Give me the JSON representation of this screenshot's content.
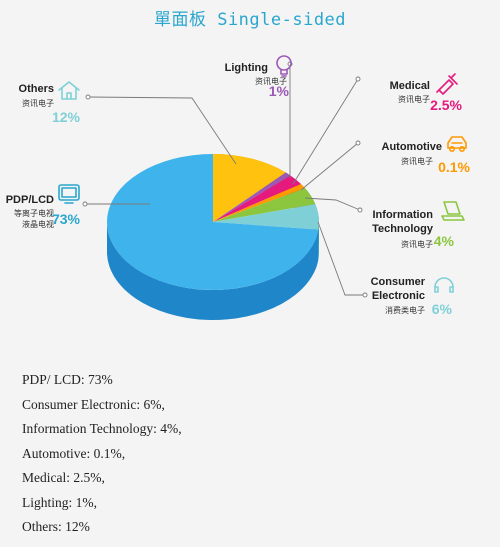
{
  "title": "單面板 Single-sided",
  "chart_data": {
    "type": "pie",
    "title": "單面板 Single-sided",
    "slices": [
      {
        "key": "pdp",
        "name": "PDP/LCD",
        "sub": [
          "等离子电视",
          "液晶电视"
        ],
        "pct_label": "73%",
        "value": 73,
        "color": "#3fb4ec",
        "side": "#1f86c9",
        "icon": "tv-icon"
      },
      {
        "key": "others",
        "name": "Others",
        "sub": [
          "资讯电子"
        ],
        "pct_label": "12%",
        "value": 12,
        "color": "#ffc20e",
        "side": "#d89a00",
        "icon": "house-icon"
      },
      {
        "key": "lighting",
        "name": "Lighting",
        "sub": [
          "资讯电子"
        ],
        "pct_label": "1%",
        "value": 1,
        "color": "#9b59b6",
        "side": "#6f3d85",
        "icon": "bulb-icon"
      },
      {
        "key": "medical",
        "name": "Medical",
        "sub": [
          "资讯电子"
        ],
        "pct_label": "2.5%",
        "value": 2.5,
        "color": "#e5197e",
        "side": "#a80f5a",
        "icon": "syringe-icon"
      },
      {
        "key": "automotive",
        "name": "Automotive",
        "sub": [
          "资讯电子"
        ],
        "pct_label": "0.1%",
        "value": 0.1,
        "color": "#ff9900",
        "side": "#c46f00",
        "icon": "car-icon"
      },
      {
        "key": "info",
        "name": "Information",
        "name2": "Technology",
        "sub": [
          "资讯电子"
        ],
        "pct_label": "4%",
        "value": 4,
        "color": "#8cc63f",
        "side": "#5e8f1f",
        "icon": "laptop-icon"
      },
      {
        "key": "consumer",
        "name": "Consumer",
        "name2": "Electronic",
        "sub": [
          "消费类电子"
        ],
        "pct_label": "6%",
        "value": 6,
        "color": "#7fd0d6",
        "side": "#3fa0a8",
        "icon": "headphones-icon"
      }
    ]
  },
  "summary": [
    "PDP/ LCD: 73%",
    "Consumer Electronic: 6%,",
    "Information Technology: 4%,",
    "Automotive: 0.1%,",
    "Medical: 2.5%,",
    "Lighting: 1%,",
    "Others: 12%"
  ]
}
